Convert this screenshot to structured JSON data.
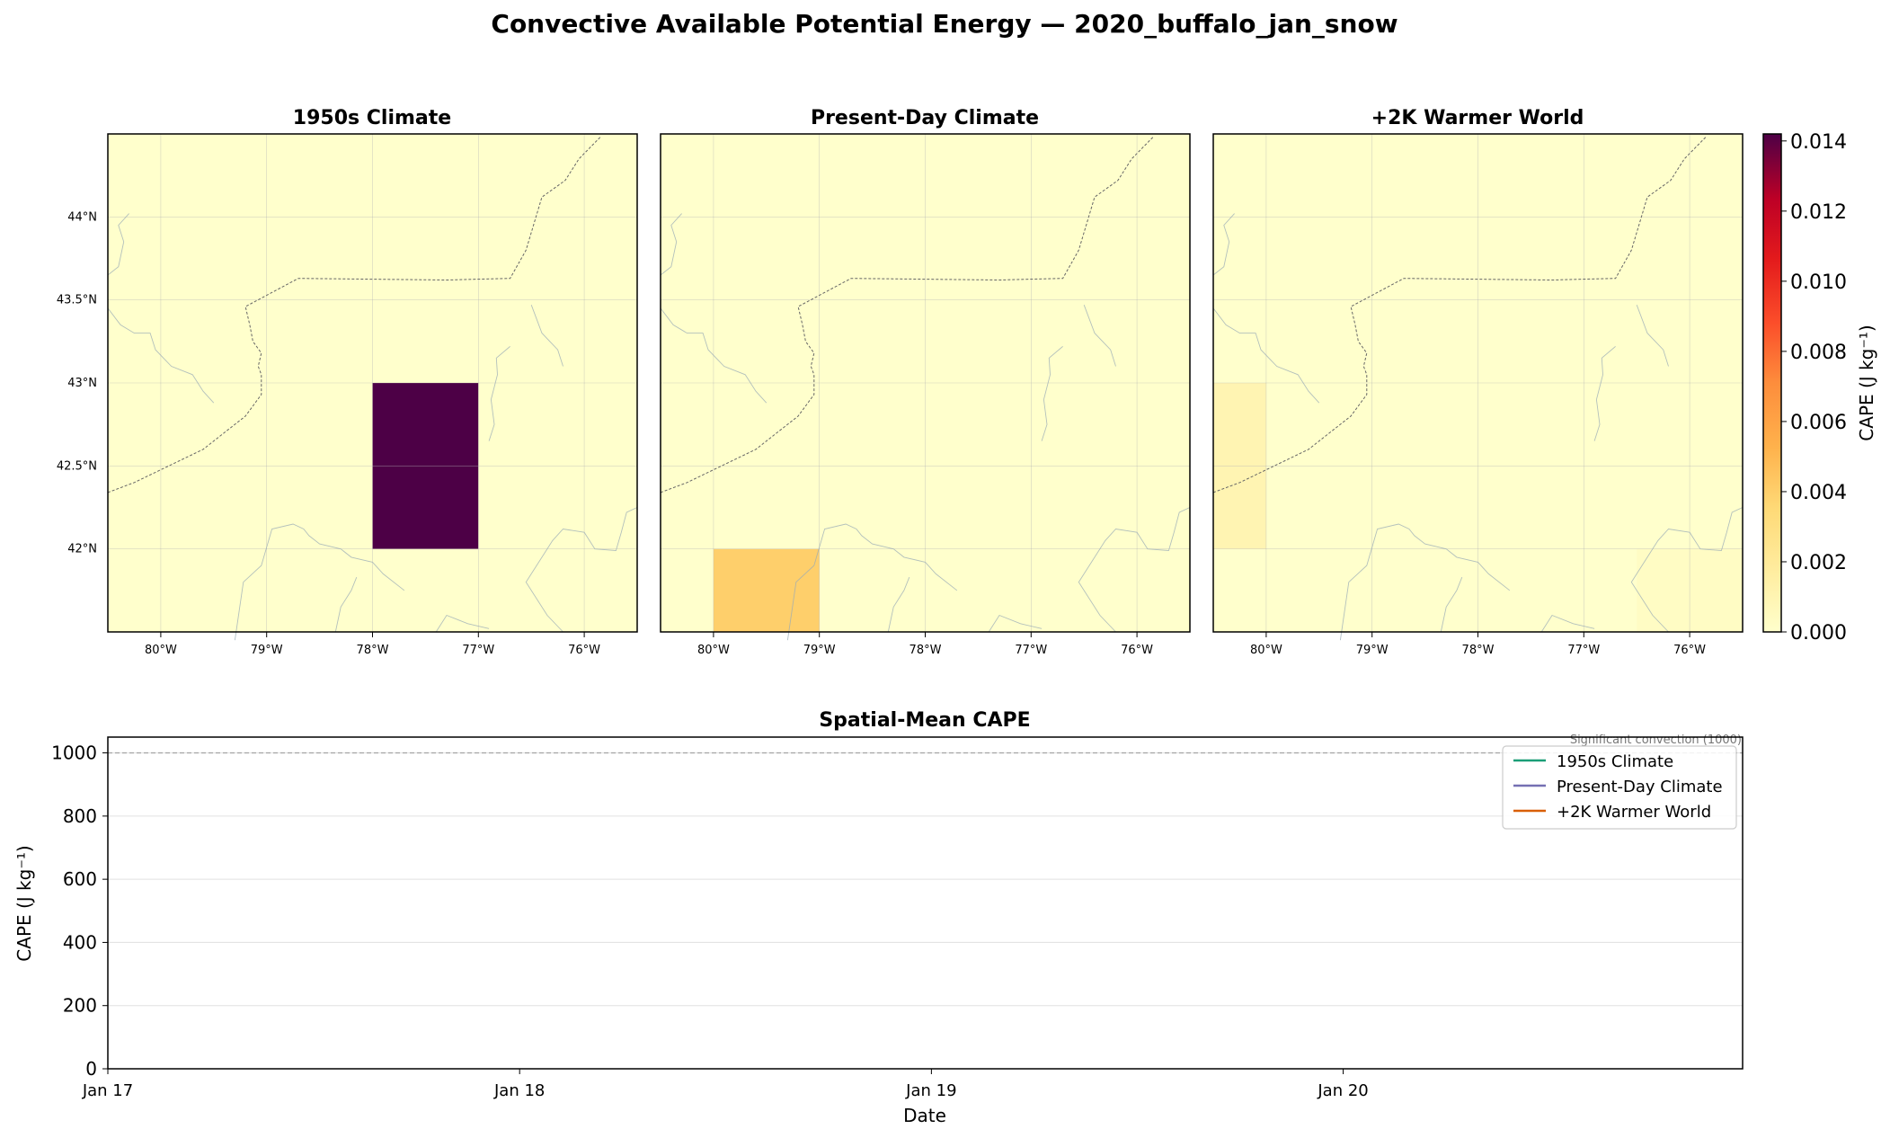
{
  "figure_title": "Convective Available Potential Energy — 2020_buffalo_jan_snow",
  "chart_data": [
    {
      "type": "heatmap",
      "panels": [
        {
          "title": "1950s Climate",
          "cells": [
            {
              "lon": [
                -78,
                -77
              ],
              "lat": [
                42,
                43
              ],
              "value": 0.0142
            }
          ]
        },
        {
          "title": "Present-Day Climate",
          "cells": [
            {
              "lon": [
                -80,
                -79
              ],
              "lat": [
                41.5,
                42
              ],
              "value": 0.004
            }
          ]
        },
        {
          "title": "+2K Warmer World",
          "cells": [
            {
              "lon": [
                -80.5,
                -80
              ],
              "lat": [
                42,
                43
              ],
              "value": 0.001
            },
            {
              "lon": [
                -76.5,
                -75.5
              ],
              "lat": [
                41.5,
                42
              ],
              "value": 0.0003
            }
          ]
        }
      ],
      "background_value": 0,
      "xlim": [
        -80.5,
        -75.5
      ],
      "ylim": [
        41.5,
        44.5
      ],
      "x_ticks": [
        -80,
        -79,
        -78,
        -77,
        -76
      ],
      "x_tick_labels": [
        "80°W",
        "79°W",
        "78°W",
        "77°W",
        "76°W"
      ],
      "y_ticks": [
        44,
        43.5,
        43,
        42.5,
        42
      ],
      "y_tick_labels": [
        "44°N",
        "43.5°N",
        "43°N",
        "42.5°N",
        "42°N"
      ],
      "grid": true,
      "colorbar": {
        "label": "CAPE (J kg⁻¹)",
        "min": 0,
        "max": 0.0142,
        "ticks": [
          0,
          0.002,
          0.004,
          0.006,
          0.008,
          0.01,
          0.012,
          0.014
        ],
        "tick_labels": [
          "0.000",
          "0.002",
          "0.004",
          "0.006",
          "0.008",
          "0.010",
          "0.012",
          "0.014"
        ],
        "colormap": "YlOrRd-purple"
      }
    },
    {
      "type": "line",
      "title": "Spatial-Mean CAPE",
      "xlabel": "Date",
      "ylabel": "CAPE (J kg⁻¹)",
      "x_tick_labels": [
        "Jan 17",
        "Jan 18",
        "Jan 19",
        "Jan 20"
      ],
      "xlim": [
        "Jan 17",
        "Jan 20 + 0.97 day"
      ],
      "ylim": [
        0,
        1050
      ],
      "y_ticks": [
        0,
        200,
        400,
        600,
        800,
        1000
      ],
      "grid": true,
      "reference_line": {
        "value": 1000,
        "label": "Significant convection (1000)"
      },
      "legend_position": "top-right",
      "series": [
        {
          "name": "1950s Climate",
          "color": "#1b9e77",
          "values": []
        },
        {
          "name": "Present-Day Climate",
          "color": "#7570b3",
          "values": []
        },
        {
          "name": "+2K Warmer World",
          "color": "#d95f02",
          "values": []
        }
      ]
    }
  ]
}
